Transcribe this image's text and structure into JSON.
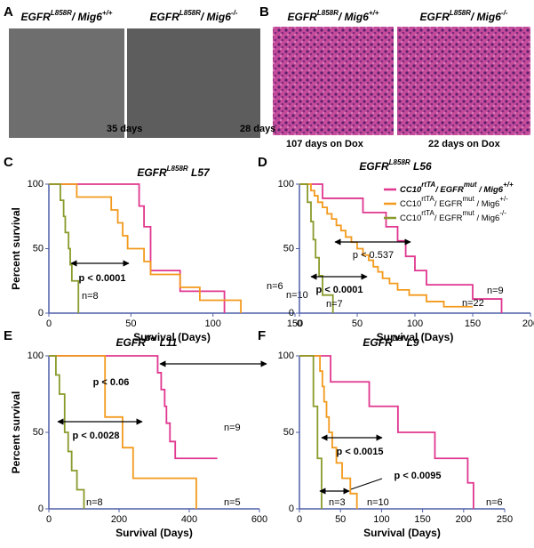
{
  "panels": {
    "A": {
      "letter": "A",
      "images": [
        {
          "genotype": [
            "EGFR",
            "L858R",
            "/ Mig6",
            "+/+"
          ],
          "caption": "35 days"
        },
        {
          "genotype": [
            "EGFR",
            "L858R",
            "/ Mig6",
            "-/-"
          ],
          "caption": "28 days"
        }
      ]
    },
    "B": {
      "letter": "B",
      "images": [
        {
          "genotype": [
            "EGFR",
            "L858R",
            "/ Mig6",
            "+/+"
          ],
          "caption": "107 days on Dox"
        },
        {
          "genotype": [
            "EGFR",
            "L858R",
            "/ Mig6",
            "-/-"
          ],
          "caption": "22 days on Dox"
        }
      ]
    }
  },
  "chart_data": [
    {
      "type": "line",
      "panel": "C",
      "title": [
        "EGFR",
        "L858R",
        " L57"
      ],
      "x_label": "Survival (Days)",
      "y_label": "Percent survival",
      "xlim": [
        0,
        150
      ],
      "xticks": [
        0,
        50,
        100,
        150
      ],
      "ylim": [
        0,
        100
      ],
      "yticks": [
        0,
        50,
        100
      ],
      "series": [
        {
          "color": "#e0378f",
          "label": "n=6",
          "x": [
            0,
            55,
            58,
            62,
            80,
            107
          ],
          "values": [
            100,
            83,
            67,
            33,
            17,
            0
          ]
        },
        {
          "color": "#f39a1d",
          "label": "n=10",
          "x": [
            0,
            17,
            38,
            42,
            45,
            48,
            58,
            62,
            80,
            92,
            117
          ],
          "values": [
            100,
            90,
            80,
            70,
            60,
            50,
            40,
            30,
            20,
            10,
            0
          ]
        },
        {
          "color": "#8a9a2b",
          "label": "n=8",
          "x": [
            0,
            7,
            9,
            10,
            12,
            13,
            14,
            18
          ],
          "values": [
            100,
            87.5,
            75,
            62.5,
            50,
            37.5,
            25,
            0
          ]
        }
      ],
      "annotations": [
        {
          "text": "p < 0.0001",
          "bold": true
        }
      ]
    },
    {
      "type": "line",
      "panel": "D",
      "title": [
        "EGFR",
        "L858R",
        " L56"
      ],
      "x_label": "Survival (Days)",
      "xlim": [
        0,
        200
      ],
      "xticks": [
        0,
        50,
        100,
        150,
        200
      ],
      "ylim": [
        0,
        100
      ],
      "yticks": [
        0,
        50,
        100
      ],
      "series": [
        {
          "name": [
            "CC10",
            "rtTA",
            "/ EGFR",
            "mut",
            " / Mig6",
            "+/+"
          ],
          "color": "#e0378f",
          "label": "n=9",
          "x": [
            0,
            20,
            55,
            75,
            85,
            92,
            100,
            110,
            150,
            175
          ],
          "values": [
            100,
            89,
            78,
            67,
            56,
            44,
            33,
            22,
            11,
            0
          ]
        },
        {
          "name": [
            "CC10",
            "rtTA",
            "/ EGFR",
            "mut",
            " / Mig6",
            "+/-"
          ],
          "color": "#f39a1d",
          "label": "n=22",
          "x": [
            0,
            10,
            13,
            16,
            20,
            24,
            28,
            32,
            36,
            40,
            45,
            50,
            55,
            60,
            64,
            68,
            72,
            78,
            85,
            95,
            110,
            125,
            150
          ],
          "values": [
            100,
            95,
            91,
            86,
            82,
            77,
            73,
            68,
            64,
            59,
            55,
            50,
            45,
            41,
            36,
            32,
            27,
            23,
            18,
            14,
            9,
            5,
            5
          ]
        },
        {
          "name": [
            "CC10",
            "rtTA",
            "/ EGFR",
            "mut",
            " / Mig6",
            "-/-"
          ],
          "color": "#8a9a2b",
          "label": "n=7",
          "x": [
            0,
            7,
            10,
            12,
            14,
            17,
            20,
            29
          ],
          "values": [
            100,
            86,
            71,
            57,
            43,
            29,
            14,
            0
          ]
        }
      ],
      "annotations": [
        {
          "text": "p < 0.537",
          "bold": false
        },
        {
          "text": "p < 0.0001",
          "bold": true
        }
      ]
    },
    {
      "type": "line",
      "panel": "E",
      "title": [
        "EGFR",
        "Del",
        " L11"
      ],
      "x_label": "Survival (Days)",
      "y_label": "Percent survival",
      "xlim": [
        0,
        600
      ],
      "xticks": [
        0,
        200,
        400,
        600
      ],
      "ylim": [
        0,
        100
      ],
      "yticks": [
        0,
        50,
        100
      ],
      "series": [
        {
          "color": "#e0378f",
          "label": "n=9",
          "x": [
            0,
            310,
            320,
            330,
            335,
            345,
            360,
            480
          ],
          "values": [
            100,
            89,
            78,
            67,
            56,
            44,
            33,
            33
          ]
        },
        {
          "color": "#f39a1d",
          "label": "n=5",
          "x": [
            0,
            160,
            210,
            240,
            420
          ],
          "values": [
            100,
            60,
            40,
            20,
            0
          ]
        },
        {
          "color": "#8a9a2b",
          "label": "n=8",
          "x": [
            0,
            20,
            30,
            45,
            55,
            65,
            80,
            100
          ],
          "values": [
            100,
            87.5,
            75,
            50,
            37.5,
            25,
            12.5,
            0
          ]
        }
      ],
      "annotations": [
        {
          "text": "p < 0.06",
          "bold": true
        },
        {
          "text": "p < 0.0028",
          "bold": true
        }
      ]
    },
    {
      "type": "line",
      "panel": "F",
      "title": [
        "EGFR",
        "Del",
        " L9"
      ],
      "x_label": "Survival (Days)",
      "xlim": [
        0,
        250
      ],
      "xticks": [
        0,
        50,
        100,
        150,
        200,
        250
      ],
      "ylim": [
        0,
        100
      ],
      "yticks": [
        0,
        50,
        100
      ],
      "series": [
        {
          "color": "#e0378f",
          "label": "n=6",
          "x": [
            0,
            38,
            85,
            120,
            165,
            205,
            212
          ],
          "values": [
            100,
            83,
            67,
            50,
            33,
            17,
            0
          ]
        },
        {
          "color": "#f39a1d",
          "label": "n=10",
          "x": [
            0,
            25,
            28,
            30,
            33,
            36,
            40,
            45,
            52,
            62,
            70
          ],
          "values": [
            100,
            90,
            80,
            70,
            60,
            50,
            40,
            30,
            20,
            10,
            0
          ]
        },
        {
          "color": "#8a9a2b",
          "label": "n=3",
          "x": [
            0,
            17,
            22,
            27
          ],
          "values": [
            100,
            67,
            33,
            0
          ]
        }
      ],
      "annotations": [
        {
          "text": "p < 0.0015",
          "bold": true
        },
        {
          "text": "p < 0.0095",
          "bold": true
        }
      ]
    }
  ]
}
